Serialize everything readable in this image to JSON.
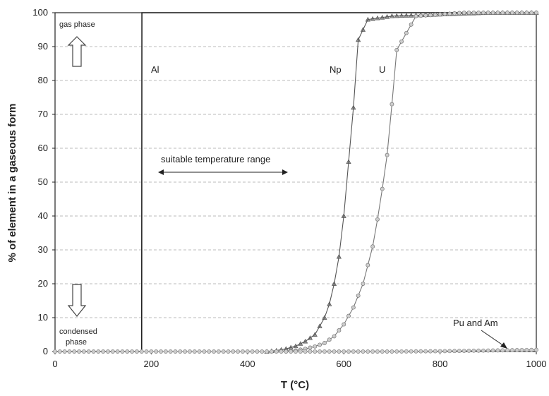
{
  "chart_data": {
    "type": "line",
    "xlabel": "T (°C)",
    "ylabel": "% of element in a gaseous form",
    "xlim": [
      0,
      1000
    ],
    "ylim": [
      0,
      100
    ],
    "x_ticks": [
      0,
      200,
      400,
      600,
      800,
      1000
    ],
    "y_ticks": [
      0,
      10,
      20,
      30,
      40,
      50,
      60,
      70,
      80,
      90,
      100
    ],
    "grid": "horizontal-dashed",
    "series": [
      {
        "name": "Al",
        "color": "#222222",
        "marker": "none",
        "x": [
          0,
          180,
          180.5,
          190,
          1000
        ],
        "y": [
          0,
          0,
          100,
          100,
          100
        ]
      },
      {
        "name": "Np",
        "color": "#555555",
        "marker": "triangle",
        "x": [
          440,
          460,
          480,
          500,
          520,
          540,
          560,
          570,
          580,
          590,
          600,
          610,
          620,
          630,
          650,
          700,
          800,
          900,
          1000
        ],
        "y": [
          0,
          0.3,
          0.8,
          1.6,
          3,
          5,
          10,
          14,
          20,
          28,
          40,
          56,
          72,
          92,
          98,
          99,
          99.5,
          100,
          100
        ]
      },
      {
        "name": "U",
        "color": "#777777",
        "marker": "circle",
        "x": [
          480,
          500,
          520,
          540,
          560,
          580,
          600,
          620,
          640,
          660,
          670,
          680,
          690,
          700,
          710,
          750,
          850,
          1000
        ],
        "y": [
          0,
          0.3,
          0.8,
          1.5,
          2.5,
          4.5,
          8,
          13,
          20,
          31,
          39,
          48,
          58,
          73,
          89,
          99,
          100,
          100
        ]
      },
      {
        "name": "Pu and Am",
        "color": "#888888",
        "marker": "circle",
        "x": [
          0,
          100,
          200,
          300,
          400,
          500,
          600,
          700,
          800,
          900,
          1000
        ],
        "y": [
          0,
          0,
          0,
          0,
          0,
          0,
          0,
          0,
          0.1,
          0.3,
          0.5
        ]
      }
    ],
    "annotations": {
      "gas_phase": "gas phase",
      "condensed_phase": "condensed phase",
      "al_label": "Al",
      "np_label": "Np",
      "u_label": "U",
      "pu_am_label": "Pu and Am",
      "range_label": "suitable temperature range"
    }
  }
}
